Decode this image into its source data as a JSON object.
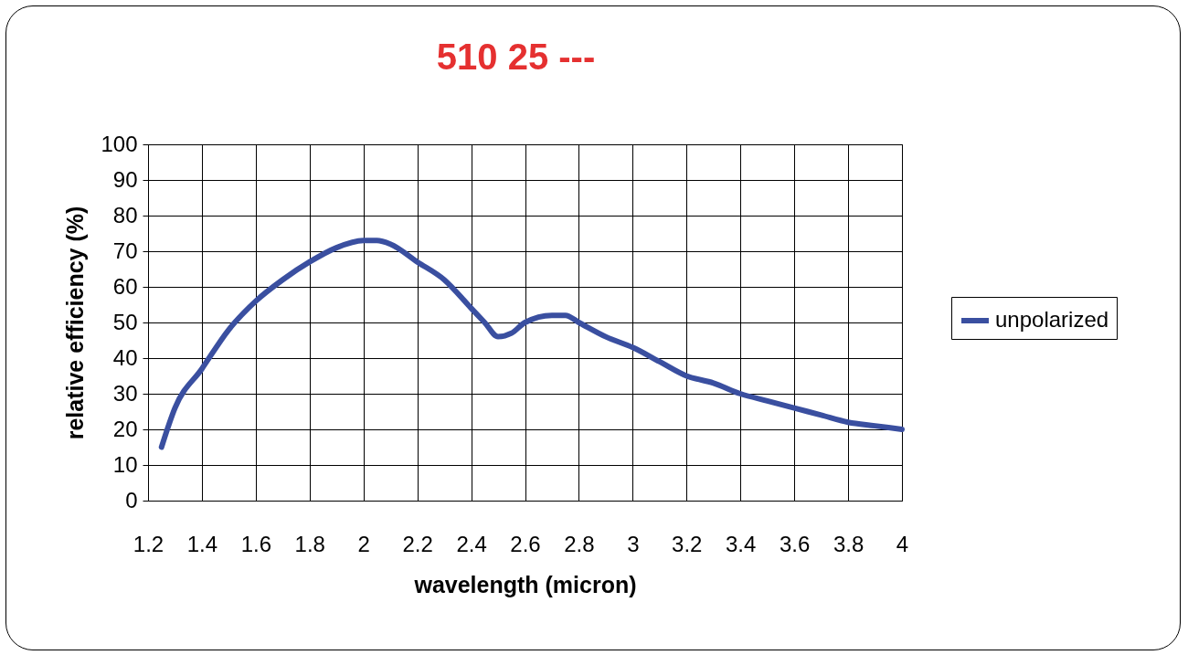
{
  "chart_data": {
    "type": "line",
    "title": "510 25 ---",
    "xlabel": "wavelength (micron)",
    "ylabel": "relative efficiency (%)",
    "x": [
      1.25,
      1.3,
      1.4,
      1.5,
      1.6,
      1.7,
      1.8,
      1.9,
      2.0,
      2.05,
      2.1,
      2.2,
      2.3,
      2.4,
      2.45,
      2.5,
      2.55,
      2.6,
      2.7,
      2.75,
      2.8,
      2.9,
      3.0,
      3.1,
      3.2,
      3.3,
      3.4,
      3.5,
      3.6,
      3.7,
      3.8,
      3.9,
      4.0
    ],
    "series": [
      {
        "name": "unpolarized",
        "color": "#3a4fa0",
        "values": [
          15,
          26,
          37,
          48,
          56,
          62,
          67,
          71,
          73,
          73,
          72,
          67,
          62,
          54,
          50,
          46,
          47,
          50,
          52,
          52,
          50,
          46,
          43,
          39,
          35,
          33,
          30,
          28,
          26,
          24,
          22,
          21,
          20
        ]
      }
    ],
    "xlim": [
      1.2,
      4
    ],
    "xticks": [
      1.2,
      1.4,
      1.6,
      1.8,
      2,
      2.2,
      2.4,
      2.6,
      2.8,
      3,
      3.2,
      3.4,
      3.6,
      3.8,
      4
    ],
    "ylim": [
      0,
      100
    ],
    "yticks": [
      0,
      10,
      20,
      30,
      40,
      50,
      60,
      70,
      80,
      90,
      100
    ],
    "grid": true,
    "legend": "right",
    "marker": "none",
    "line_style": "solid"
  }
}
